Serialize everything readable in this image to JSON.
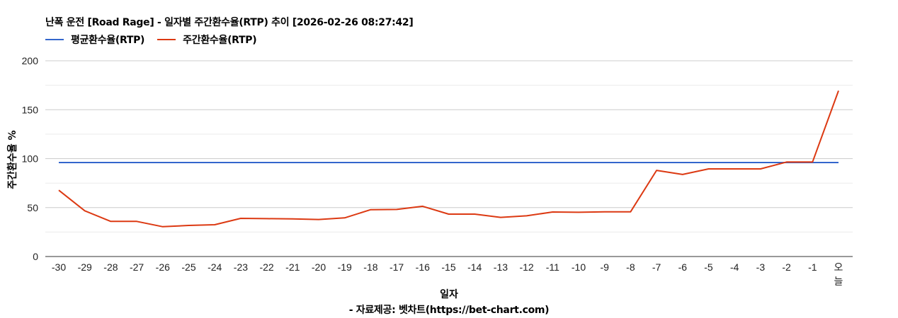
{
  "chart_data": {
    "type": "line",
    "title": "난폭 운전 [Road Rage] - 일자별 주간환수율(RTP) 추이 [2026-02-26 08:27:42]",
    "xlabel": "일자",
    "ylabel": "주간환수율 %",
    "source": "- 자료제공: 벳차트(https://bet-chart.com)",
    "ylim": [
      0,
      200
    ],
    "yticks": [
      0,
      50,
      100,
      150,
      200
    ],
    "grid": true,
    "legend_position": "top",
    "categories": [
      "-30",
      "-29",
      "-28",
      "-27",
      "-26",
      "-25",
      "-24",
      "-23",
      "-22",
      "-21",
      "-20",
      "-19",
      "-18",
      "-17",
      "-16",
      "-15",
      "-14",
      "-13",
      "-12",
      "-11",
      "-10",
      "-9",
      "-8",
      "-7",
      "-6",
      "-5",
      "-4",
      "-3",
      "-2",
      "-1",
      "오늘"
    ],
    "series": [
      {
        "name": "평균환수율(RTP)",
        "color": "#3366cc",
        "values": [
          96,
          96,
          96,
          96,
          96,
          96,
          96,
          96,
          96,
          96,
          96,
          96,
          96,
          96,
          96,
          96,
          96,
          96,
          96,
          96,
          96,
          96,
          96,
          96,
          96,
          96,
          96,
          96,
          96,
          96,
          96
        ]
      },
      {
        "name": "주간환수율(RTP)",
        "color": "#dc3912",
        "values": [
          67.7,
          46.7,
          35.9,
          35.9,
          30.5,
          31.8,
          32.5,
          39,
          38.7,
          38.5,
          37.8,
          39.5,
          47.9,
          48.1,
          51.3,
          43.3,
          43.3,
          40,
          41.6,
          45.5,
          45.2,
          45.7,
          45.7,
          88,
          83.8,
          89.5,
          89.5,
          89.5,
          96.5,
          96.5,
          169.4
        ]
      }
    ]
  }
}
